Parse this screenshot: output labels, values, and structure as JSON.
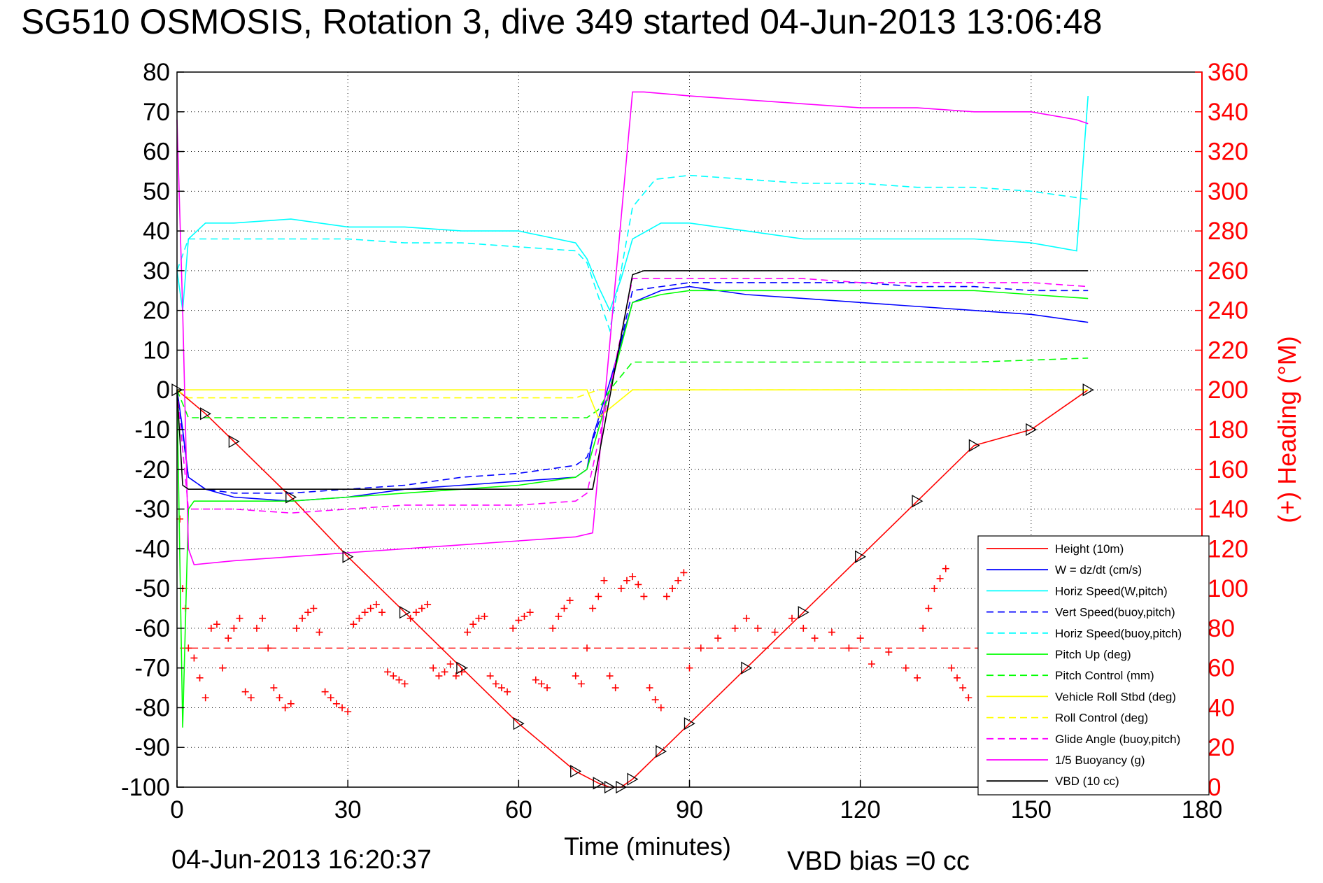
{
  "title": "SG510 OSMOSIS, Rotation 3, dive 349 started 04-Jun-2013 13:06:48",
  "footer": {
    "timestamp": "04-Jun-2013 16:20:37",
    "vbd_bias": "VBD bias =0 cc"
  },
  "chart_data": {
    "type": "line",
    "xlabel": "Time (minutes)",
    "ylabel": "",
    "y2label": "(+) Heading (°M)",
    "xlim": [
      0,
      180
    ],
    "ylim": [
      -100,
      80
    ],
    "y2lim": [
      0,
      360
    ],
    "xticks": [
      0,
      30,
      60,
      90,
      120,
      150,
      180
    ],
    "yticks": [
      -100,
      -90,
      -80,
      -70,
      -60,
      -50,
      -40,
      -30,
      -20,
      -10,
      0,
      10,
      20,
      30,
      40,
      50,
      60,
      70,
      80
    ],
    "y2ticks": [
      0,
      20,
      40,
      60,
      80,
      100,
      120,
      140,
      160,
      180,
      200,
      220,
      240,
      260,
      280,
      300,
      320,
      340,
      360
    ],
    "grid": true,
    "legend_position": "bottom-right",
    "series": [
      {
        "name": "Height (10m)",
        "color": "#ff0000",
        "style": "solid",
        "x": [
          0,
          5,
          10,
          20,
          30,
          40,
          50,
          60,
          70,
          74,
          76,
          78,
          80,
          85,
          90,
          100,
          110,
          120,
          130,
          140,
          150,
          160
        ],
        "y": [
          0,
          -6,
          -13,
          -27,
          -42,
          -56,
          -70,
          -84,
          -96,
          -99,
          -100,
          -100,
          -98,
          -91,
          -84,
          -70,
          -56,
          -42,
          -28,
          -14,
          -10,
          0
        ]
      },
      {
        "name": "W = dz/dt (cm/s)",
        "color": "#0000ff",
        "style": "solid",
        "x": [
          0,
          1,
          2,
          5,
          10,
          20,
          30,
          40,
          50,
          60,
          70,
          72,
          73,
          76,
          80,
          85,
          90,
          100,
          110,
          120,
          130,
          140,
          150,
          160
        ],
        "y": [
          0,
          -10,
          -22,
          -25,
          -27,
          -28,
          -27,
          -25,
          -24,
          -23,
          -22,
          -20,
          -12,
          2,
          22,
          25,
          26,
          24,
          23,
          22,
          21,
          20,
          19,
          17
        ]
      },
      {
        "name": "Horiz Speed(W,pitch)",
        "color": "#00ffff",
        "style": "solid",
        "x": [
          0,
          1,
          2,
          5,
          10,
          20,
          30,
          40,
          50,
          60,
          70,
          72,
          74,
          76,
          78,
          80,
          85,
          90,
          100,
          110,
          120,
          130,
          140,
          150,
          158,
          160
        ],
        "y": [
          30,
          20,
          38,
          42,
          42,
          43,
          41,
          41,
          40,
          40,
          37,
          33,
          26,
          20,
          28,
          38,
          42,
          42,
          40,
          38,
          38,
          38,
          38,
          37,
          35,
          74
        ]
      },
      {
        "name": "Vert Speed(buoy,pitch)",
        "color": "#0000ff",
        "style": "dashed",
        "x": [
          0,
          2,
          5,
          10,
          20,
          30,
          40,
          50,
          60,
          70,
          72,
          76,
          80,
          90,
          100,
          110,
          120,
          130,
          140,
          150,
          160
        ],
        "y": [
          0,
          -22,
          -25,
          -26,
          -26,
          -25,
          -24,
          -22,
          -21,
          -19,
          -17,
          0,
          25,
          27,
          27,
          27,
          27,
          26,
          26,
          25,
          25
        ]
      },
      {
        "name": "Horiz Speed(buoy,pitch)",
        "color": "#00ffff",
        "style": "dashed",
        "x": [
          0,
          2,
          5,
          10,
          20,
          30,
          40,
          50,
          60,
          70,
          72,
          76,
          78,
          80,
          84,
          90,
          100,
          110,
          120,
          130,
          140,
          150,
          160
        ],
        "y": [
          30,
          38,
          38,
          38,
          38,
          38,
          37,
          37,
          36,
          35,
          32,
          15,
          30,
          46,
          53,
          54,
          53,
          52,
          52,
          51,
          51,
          50,
          48
        ]
      },
      {
        "name": "Pitch Up (deg)",
        "color": "#00ff00",
        "style": "solid",
        "x": [
          0,
          1,
          2,
          3,
          5,
          10,
          20,
          30,
          40,
          50,
          60,
          70,
          72,
          76,
          80,
          85,
          90,
          100,
          110,
          120,
          130,
          140,
          150,
          160
        ],
        "y": [
          0,
          -85,
          -30,
          -28,
          -28,
          -28,
          -28,
          -27,
          -26,
          -25,
          -24,
          -22,
          -20,
          0,
          22,
          24,
          25,
          25,
          25,
          25,
          25,
          25,
          24,
          23
        ]
      },
      {
        "name": "Pitch Control (mm)",
        "color": "#00ff00",
        "style": "dashed",
        "x": [
          0,
          2,
          5,
          20,
          40,
          60,
          72,
          74,
          76,
          80,
          100,
          120,
          140,
          160
        ],
        "y": [
          0,
          -7,
          -7,
          -7,
          -7,
          -7,
          -7,
          -5,
          0,
          7,
          7,
          7,
          7,
          8
        ]
      },
      {
        "name": "Vehicle Roll Stbd (deg)",
        "color": "#ffff00",
        "style": "solid",
        "x": [
          0,
          5,
          20,
          40,
          60,
          72,
          74,
          80,
          100,
          120,
          140,
          160
        ],
        "y": [
          0,
          0,
          0,
          0,
          0,
          0,
          -7,
          0,
          0,
          0,
          0,
          0
        ]
      },
      {
        "name": "Roll Control (deg)",
        "color": "#ffff00",
        "style": "dashed",
        "x": [
          0,
          2,
          10,
          20,
          30,
          40,
          50,
          60,
          70,
          74,
          80,
          100,
          120,
          140,
          160
        ],
        "y": [
          0,
          -2,
          -2,
          -2,
          -2,
          -2,
          -2,
          -2,
          -2,
          0,
          0,
          0,
          0,
          0,
          0
        ]
      },
      {
        "name": "Glide Angle (buoy,pitch)",
        "color": "#ff00ff",
        "style": "dashed",
        "x": [
          0,
          2,
          5,
          10,
          20,
          30,
          40,
          50,
          60,
          70,
          72,
          76,
          80,
          90,
          100,
          110,
          120,
          130,
          140,
          150,
          160
        ],
        "y": [
          0,
          -30,
          -30,
          -30,
          -31,
          -30,
          -29,
          -29,
          -29,
          -28,
          -26,
          0,
          28,
          28,
          28,
          28,
          27,
          27,
          27,
          27,
          26
        ]
      },
      {
        "name": "1/5 Buoyancy (g)",
        "color": "#ff00ff",
        "style": "solid",
        "x": [
          0,
          1,
          2,
          3,
          10,
          20,
          30,
          40,
          50,
          60,
          70,
          73,
          80,
          82,
          90,
          100,
          110,
          120,
          130,
          140,
          150,
          158,
          160
        ],
        "y": [
          68,
          20,
          -40,
          -44,
          -43,
          -42,
          -41,
          -40,
          -39,
          -38,
          -37,
          -36,
          75,
          75,
          74,
          73,
          72,
          71,
          71,
          70,
          70,
          68,
          67
        ]
      },
      {
        "name": "VBD (10 cc)",
        "color": "#000000",
        "style": "solid",
        "x": [
          0,
          1,
          2,
          10,
          20,
          40,
          60,
          72,
          73,
          80,
          82,
          100,
          120,
          140,
          160
        ],
        "y": [
          0,
          -24,
          -25,
          -25,
          -25,
          -25,
          -25,
          -25,
          -25,
          29,
          30,
          30,
          30,
          30,
          30
        ]
      }
    ],
    "heading_series": {
      "name": "(+) Heading",
      "axis": "right",
      "color": "#ff0000",
      "marker": "+",
      "x": [
        0.5,
        1,
        1.5,
        2,
        3,
        4,
        5,
        6,
        7,
        8,
        9,
        10,
        11,
        12,
        13,
        14,
        15,
        16,
        17,
        18,
        19,
        20,
        21,
        22,
        23,
        24,
        25,
        26,
        27,
        28,
        29,
        30,
        31,
        32,
        33,
        34,
        35,
        36,
        37,
        38,
        39,
        40,
        41,
        42,
        43,
        44,
        45,
        46,
        47,
        48,
        49,
        50,
        51,
        52,
        53,
        54,
        55,
        56,
        57,
        58,
        59,
        60,
        61,
        62,
        63,
        64,
        65,
        66,
        67,
        68,
        69,
        70,
        71,
        72,
        73,
        74,
        75,
        76,
        77,
        78,
        79,
        80,
        81,
        82,
        83,
        84,
        85,
        86,
        87,
        88,
        89,
        90,
        92,
        95,
        98,
        100,
        102,
        105,
        108,
        110,
        112,
        115,
        118,
        120,
        122,
        125,
        128,
        130,
        131,
        132,
        133,
        134,
        135,
        136,
        137,
        138,
        139
      ],
      "y": [
        135,
        100,
        90,
        70,
        65,
        55,
        45,
        80,
        82,
        60,
        75,
        80,
        85,
        48,
        45,
        80,
        85,
        70,
        50,
        45,
        40,
        42,
        80,
        85,
        88,
        90,
        78,
        48,
        45,
        42,
        40,
        38,
        82,
        85,
        88,
        90,
        92,
        88,
        58,
        56,
        54,
        52,
        85,
        88,
        90,
        92,
        60,
        56,
        58,
        62,
        56,
        58,
        78,
        82,
        85,
        86,
        56,
        52,
        50,
        48,
        80,
        84,
        86,
        88,
        54,
        52,
        50,
        80,
        86,
        90,
        94,
        56,
        52,
        70,
        90,
        96,
        104,
        56,
        50,
        100,
        104,
        106,
        102,
        96,
        50,
        44,
        40,
        96,
        100,
        104,
        108,
        60,
        70,
        75,
        80,
        85,
        80,
        78,
        85,
        80,
        75,
        78,
        70,
        75,
        62,
        68,
        60,
        55,
        80,
        90,
        100,
        105,
        110,
        60,
        55,
        50,
        45
      ],
      "reference_line": 70
    }
  }
}
